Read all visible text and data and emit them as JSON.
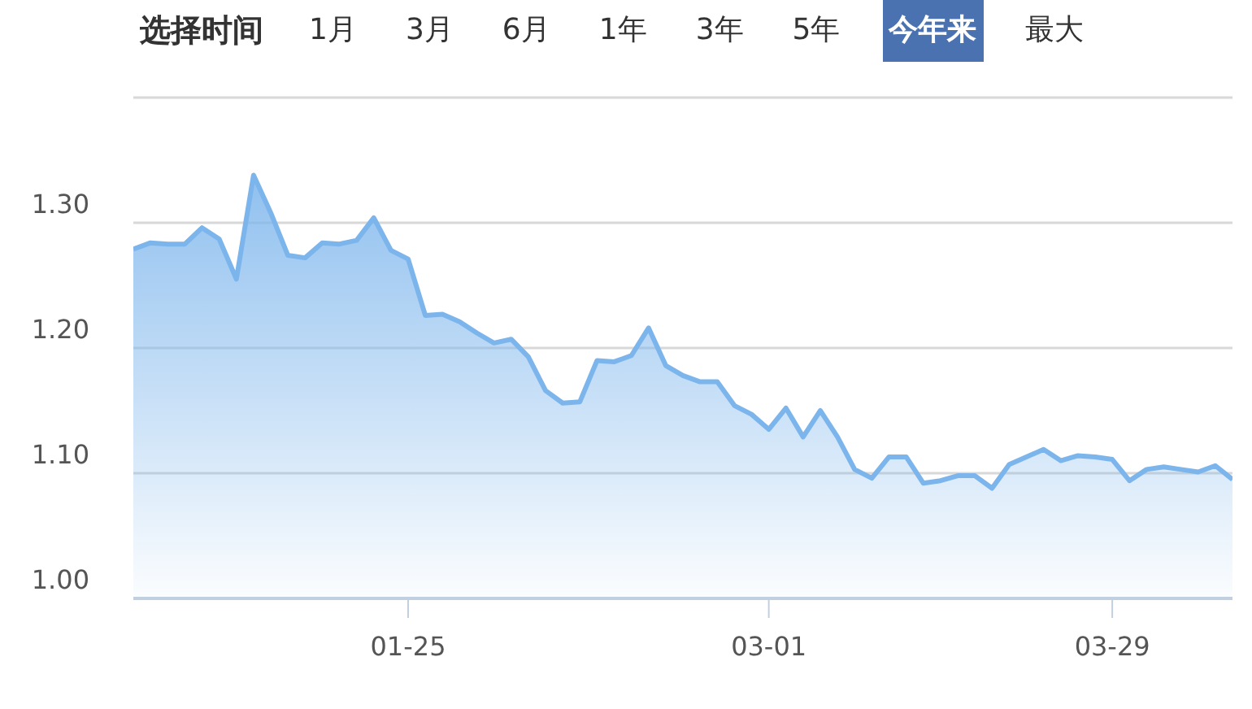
{
  "chart_data": {
    "type": "area",
    "annotations": [
      "选择时间",
      "1月",
      "3月",
      "6月",
      "1年",
      "3年",
      "5年",
      "今年来",
      "最大"
    ],
    "categories": [
      null,
      null,
      null,
      null,
      null,
      null,
      null,
      null,
      null,
      null,
      null,
      null,
      null,
      null,
      null,
      null,
      "01-25",
      null,
      null,
      null,
      null,
      null,
      null,
      null,
      null,
      null,
      null,
      null,
      null,
      null,
      null,
      null,
      null,
      null,
      null,
      null,
      null,
      "03-01",
      null,
      null,
      null,
      null,
      null,
      null,
      null,
      null,
      null,
      null,
      null,
      null,
      null,
      null,
      null,
      null,
      null,
      null,
      null,
      "03-29",
      null,
      null,
      null,
      null,
      null,
      null,
      null
    ],
    "series": [
      {
        "color": "#7cb5ec",
        "values": [
          1.279,
          1.284,
          1.283,
          1.283,
          1.296,
          1.287,
          1.255,
          1.338,
          1.308,
          1.274,
          1.272,
          1.284,
          1.283,
          1.286,
          1.304,
          1.278,
          1.271,
          1.226,
          1.227,
          1.221,
          1.212,
          1.204,
          1.207,
          1.193,
          1.166,
          1.156,
          1.157,
          1.19,
          1.189,
          1.194,
          1.216,
          1.186,
          1.178,
          1.173,
          1.173,
          1.154,
          1.147,
          1.135,
          1.152,
          1.129,
          1.15,
          1.129,
          1.103,
          1.096,
          1.113,
          1.113,
          1.092,
          1.094,
          1.098,
          1.098,
          1.088,
          1.107,
          1.113,
          1.119,
          1.11,
          1.114,
          1.113,
          1.111,
          1.094,
          1.103,
          1.105,
          1.103,
          1.101,
          1.106,
          1.095
        ]
      }
    ],
    "ylim": [
      1.0,
      1.4
    ],
    "yticks": [
      {
        "value": 1.0,
        "label": "1.00"
      },
      {
        "value": 1.1,
        "label": "1.10"
      },
      {
        "value": 1.2,
        "label": "1.20"
      },
      {
        "value": 1.3,
        "label": "1.30"
      },
      {
        "value": 1.4,
        "label": null
      }
    ],
    "grid": "y"
  }
}
